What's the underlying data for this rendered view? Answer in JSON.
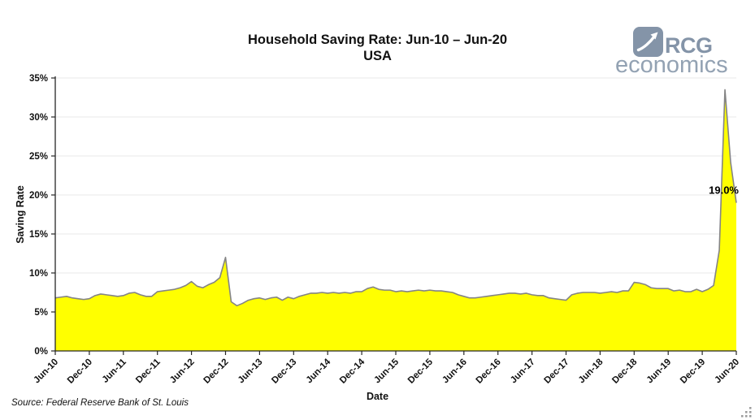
{
  "header": {
    "title": "Household Saving Rate: Jun-10 – Jun-20",
    "subtitle": "USA"
  },
  "logo": {
    "name": "RCG",
    "sub": "economics",
    "brand_color": "#8494a8"
  },
  "footer": {
    "source": "Source: Federal Reserve Bank of St. Louis"
  },
  "chart_data": {
    "type": "area",
    "title": "Household Saving Rate: Jun-10 – Jun-20",
    "subtitle": "USA",
    "xlabel": "Date",
    "ylabel": "Saving Rate",
    "ylim": [
      0,
      35
    ],
    "ytick_step": 5,
    "ytick_labels": [
      "0%",
      "5%",
      "10%",
      "15%",
      "20%",
      "25%",
      "30%",
      "35%"
    ],
    "xtick_labels": [
      "Jun-10",
      "Dec-10",
      "Jun-11",
      "Dec-11",
      "Jun-12",
      "Dec-12",
      "Jun-13",
      "Dec-13",
      "Jun-14",
      "Dec-14",
      "Jun-15",
      "Dec-15",
      "Jun-16",
      "Dec-16",
      "Jun-17",
      "Dec-17",
      "Jun-18",
      "Dec-18",
      "Jun-19",
      "Dec-19",
      "Jun-20"
    ],
    "x_frequency": "monthly",
    "x_start": "Jun-2010",
    "x_end": "Jun-2020",
    "grid": "horizontal",
    "legend": "none",
    "fill_color": "#ffff00",
    "line_color": "#848484",
    "grid_color": "#e8e8e8",
    "axis_color": "#262626",
    "series": [
      {
        "name": "Saving Rate",
        "values": [
          6.8,
          6.9,
          7.0,
          6.8,
          6.7,
          6.6,
          6.7,
          7.1,
          7.3,
          7.2,
          7.1,
          7.0,
          7.1,
          7.4,
          7.5,
          7.2,
          7.0,
          7.0,
          7.6,
          7.7,
          7.8,
          7.9,
          8.1,
          8.4,
          8.9,
          8.3,
          8.1,
          8.5,
          8.8,
          9.4,
          12.0,
          6.3,
          5.8,
          6.1,
          6.5,
          6.7,
          6.8,
          6.6,
          6.8,
          6.9,
          6.5,
          6.9,
          6.7,
          7.0,
          7.2,
          7.4,
          7.4,
          7.5,
          7.4,
          7.5,
          7.4,
          7.5,
          7.4,
          7.6,
          7.6,
          8.0,
          8.2,
          7.9,
          7.8,
          7.8,
          7.6,
          7.7,
          7.6,
          7.7,
          7.8,
          7.7,
          7.8,
          7.7,
          7.7,
          7.6,
          7.5,
          7.2,
          7.0,
          6.8,
          6.8,
          6.9,
          7.0,
          7.1,
          7.2,
          7.3,
          7.4,
          7.4,
          7.3,
          7.4,
          7.2,
          7.1,
          7.1,
          6.8,
          6.7,
          6.6,
          6.5,
          7.2,
          7.4,
          7.5,
          7.5,
          7.5,
          7.4,
          7.5,
          7.6,
          7.5,
          7.7,
          7.7,
          8.8,
          8.7,
          8.5,
          8.1,
          8.0,
          8.0,
          8.0,
          7.7,
          7.8,
          7.6,
          7.6,
          7.9,
          7.6,
          7.9,
          8.4,
          12.9,
          33.5,
          24.2,
          19.0
        ]
      }
    ],
    "annotation": {
      "text": "19.0%",
      "month_index": 120,
      "value": 19.0
    }
  }
}
